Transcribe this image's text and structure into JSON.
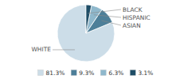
{
  "chart_data": {
    "type": "pie",
    "categories": [
      "WHITE",
      "ASIAN",
      "HISPANIC",
      "BLACK"
    ],
    "values": [
      81.3,
      9.3,
      6.3,
      3.1
    ],
    "value_labels": [
      "81.3%",
      "9.3%",
      "6.3%",
      "3.1%"
    ],
    "colors": [
      "#ccdde8",
      "#4d7f99",
      "#8fb8cc",
      "#1e4d66"
    ],
    "legend": "bottom"
  }
}
